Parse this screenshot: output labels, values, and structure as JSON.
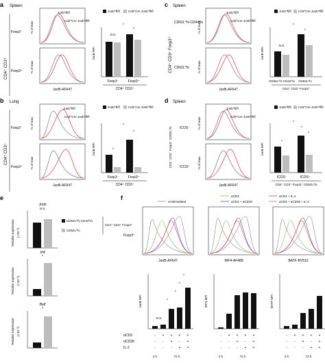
{
  "panels": {
    "a": {
      "letter": "a",
      "tissue": "Spleen",
      "cd_label": "CD4⁺ CD3⁺",
      "row_labels": [
        "Foxp3⁻",
        "Foxp3⁺"
      ],
      "xaxis": "JunB-AF647",
      "yaxis": "% of max",
      "legend": {
        "left": "Junb^fl/fl",
        "right": "Cd4^Cre Junb^fl/fl"
      },
      "bar_legend": [
        "Junb^fl/fl",
        "Cd4^Cre Junb^fl/fl"
      ],
      "bar_ylabel": "JunB MFI",
      "bar_groups": [
        "Foxp3⁻",
        "Foxp3⁺"
      ],
      "bar_footer": "CD4⁺ CD3⁺",
      "sig": [
        "N.S.",
        "*",
        "*"
      ]
    },
    "b": {
      "letter": "b",
      "tissue": "Lung",
      "cd_label": "CD4⁺ CD3⁺",
      "row_labels": [
        "Foxp3⁻",
        "Foxp3⁺"
      ],
      "xaxis": "JunB-AF647",
      "yaxis": "% of max",
      "legend": {
        "left": "Junb^fl/fl",
        "right": "Cd4^Cre Junb^fl/fl"
      },
      "bar_legend": [
        "Junb^fl/fl",
        "Cd4^Cre Junb^fl/fl"
      ],
      "bar_ylabel": "JunB MFI",
      "bar_groups": [
        "Foxp3⁻",
        "Foxp3⁺"
      ],
      "bar_footer": "CD4⁺ CD3⁺",
      "sig": [
        "*",
        "*",
        "*"
      ]
    },
    "c": {
      "letter": "c",
      "tissue": "Spleen",
      "cd_label": "CD4⁺ CD3⁺ Foxp3⁺",
      "row_labels": [
        "CD62L^hi CD44^lo",
        "CD62L^lo"
      ],
      "xaxis": "JunB-AF647",
      "yaxis": "% of max",
      "legend": {
        "left": "Junb^fl/fl",
        "right": "Cd4^Cre Junb^fl/fl"
      },
      "bar_legend": [
        "Junb^fl/fl",
        "Cd4^Cre Junb^fl/fl"
      ],
      "bar_ylabel": "JunB MFI",
      "bar_groups": [
        "CD62L^hi CD44^lo",
        "CD62L^lo"
      ],
      "bar_footer": "CD4⁺ CD3⁺ Foxp3⁺",
      "sig": [
        "N.S.",
        "*",
        "*"
      ]
    },
    "d": {
      "letter": "d",
      "tissue": "Spleen",
      "cd_label": "CD4⁺ CD3⁺ Foxp3⁺ CD62L^lo",
      "row_labels": [
        "ICOS⁻",
        "ICOS⁺"
      ],
      "xaxis": "JunB-AF647",
      "yaxis": "% of max",
      "legend": {
        "left": "Junb^fl/fl",
        "right": "Cd4^Cre Junb^fl/fl"
      },
      "bar_legend": [
        "Junb^fl/fl",
        "Cd4^Cre Junb^fl/fl"
      ],
      "bar_ylabel": "JunB MFI",
      "bar_groups": [
        "ICOS⁻",
        "ICOS⁺"
      ],
      "bar_footer": "CD4⁺ CD3⁺ Foxp3⁺ CD62L^lo",
      "sig": [
        "*",
        "*",
        "*",
        "*"
      ]
    },
    "e": {
      "letter": "e",
      "genes": [
        "Junb",
        "Irf4",
        "Batf"
      ],
      "ylabel": "Relative expression",
      "unit": "(×10⁻²)",
      "legend": [
        "CD62L^hi CD44^lo",
        "CD62L^lo"
      ],
      "legend_side": "CD4⁺ CD3⁺ Foxp3⁺",
      "sig": [
        "N.S.",
        "*",
        "*"
      ]
    },
    "f": {
      "letter": "f",
      "row_label": "Foxp3⁺",
      "legend": [
        "Unstimulated",
        "αCD3",
        "αCD3 + αCD28",
        "αCD3 + IL-2",
        "αCD3 + αCD28 + IL-2"
      ],
      "histo_x": [
        "JunB-AF647",
        "IRF4-AF488",
        "BATF-BV510"
      ],
      "mfi_y": [
        "JunB MFI",
        "IRF4 MFI",
        "BATF MFI"
      ],
      "row_names": [
        "αCD3",
        "αCD28",
        "IL-2"
      ],
      "conditions": [
        [
          "-",
          "-",
          "-"
        ],
        [
          "+",
          "-",
          "-"
        ],
        [
          "+",
          "+",
          "-"
        ],
        [
          "+",
          "-",
          "+"
        ],
        [
          "+",
          "+",
          "+"
        ]
      ],
      "times": [
        "0 h",
        "72 h"
      ],
      "sig_junb": [
        "N.S.",
        "*",
        "*",
        "*",
        "*"
      ]
    }
  },
  "colors": {
    "flfl": "#e8332a",
    "cre": "#6f6fa8",
    "black": "#111111",
    "grey": "#bdbdbd",
    "green": "#7ac143",
    "blue": "#3b4ec8",
    "purple": "#a368b5"
  }
}
